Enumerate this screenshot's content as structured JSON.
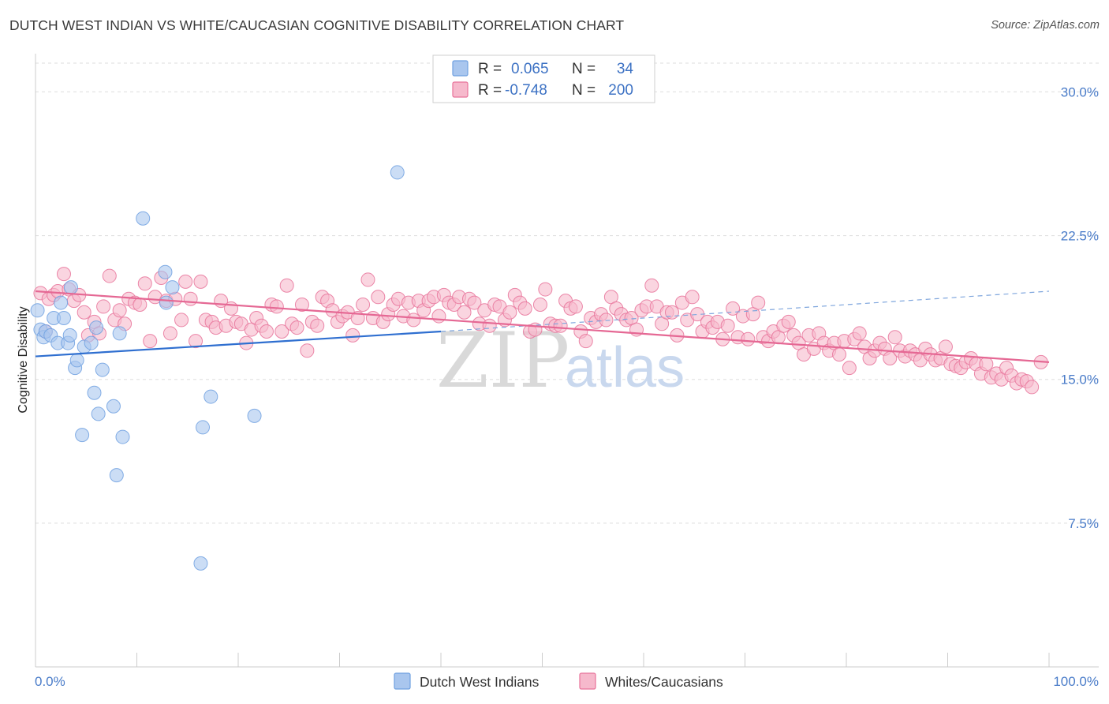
{
  "title": "DUTCH WEST INDIAN VS WHITE/CAUCASIAN COGNITIVE DISABILITY CORRELATION CHART",
  "source": "Source: ZipAtlas.com",
  "watermark": {
    "zip": "ZIP",
    "atlas": "atlas"
  },
  "legend": {
    "rows": [
      {
        "r_label": "R =",
        "r_value": "0.065",
        "n_label": "N =",
        "n_value": "34",
        "color": "#a9c6ee"
      },
      {
        "r_label": "R =",
        "r_value": "-0.748",
        "n_label": "N =",
        "n_value": "200",
        "color": "#f6b9cc"
      }
    ]
  },
  "bottom_legend": [
    {
      "label": "Dutch West Indians",
      "color": "#a9c6ee"
    },
    {
      "label": "Whites/Caucasians",
      "color": "#f6b9cc"
    }
  ],
  "chart_data": {
    "type": "scatter",
    "title": "DUTCH WEST INDIAN VS WHITE/CAUCASIAN COGNITIVE DISABILITY CORRELATION CHART",
    "xlabel": "",
    "ylabel": "Cognitive Disability",
    "xlim": [
      0,
      100
    ],
    "ylim": [
      0,
      31.5
    ],
    "x_tick_labels": [
      "0.0%",
      "100.0%"
    ],
    "y_ticks": [
      7.5,
      15.0,
      22.5,
      30.0
    ],
    "y_tick_labels": [
      "7.5%",
      "15.0%",
      "22.5%",
      "30.0%"
    ],
    "grid": "horizontal dashed",
    "legend_position": "top-center",
    "series": [
      {
        "name": "Dutch West Indians",
        "color": "#6fa0e0",
        "fill": "#a9c6ee",
        "trend": {
          "x": [
            0,
            40,
            100
          ],
          "y": [
            16.2,
            17.5,
            19.6
          ],
          "solid_until": 40
        },
        "points": [
          [
            0.2,
            18.6
          ],
          [
            0.5,
            17.6
          ],
          [
            0.8,
            17.2
          ],
          [
            1.0,
            17.5
          ],
          [
            1.5,
            17.3
          ],
          [
            1.8,
            18.2
          ],
          [
            2.2,
            16.9
          ],
          [
            2.5,
            19.0
          ],
          [
            2.8,
            18.2
          ],
          [
            3.2,
            16.9
          ],
          [
            3.4,
            17.3
          ],
          [
            3.5,
            19.8
          ],
          [
            3.9,
            15.6
          ],
          [
            4.1,
            16.0
          ],
          [
            4.6,
            12.1
          ],
          [
            4.8,
            16.7
          ],
          [
            5.5,
            16.9
          ],
          [
            5.8,
            14.3
          ],
          [
            6.0,
            17.7
          ],
          [
            6.2,
            13.2
          ],
          [
            6.6,
            15.5
          ],
          [
            7.7,
            13.6
          ],
          [
            8.0,
            10.0
          ],
          [
            8.3,
            17.4
          ],
          [
            8.6,
            12.0
          ],
          [
            10.6,
            23.4
          ],
          [
            12.8,
            20.6
          ],
          [
            12.9,
            19.0
          ],
          [
            13.5,
            19.8
          ],
          [
            16.3,
            5.4
          ],
          [
            16.5,
            12.5
          ],
          [
            17.3,
            14.1
          ],
          [
            21.6,
            13.1
          ],
          [
            35.7,
            25.8
          ]
        ]
      },
      {
        "name": "Whites/Caucasians",
        "color": "#e8739a",
        "fill": "#f6b9cc",
        "trend": {
          "x": [
            0,
            100
          ],
          "y": [
            19.6,
            15.9
          ]
        },
        "points": [
          [
            0.5,
            19.5
          ],
          [
            1.0,
            17.5
          ],
          [
            1.3,
            19.2
          ],
          [
            1.8,
            19.4
          ],
          [
            2.2,
            19.6
          ],
          [
            2.8,
            20.5
          ],
          [
            3.3,
            19.7
          ],
          [
            3.8,
            19.1
          ],
          [
            4.3,
            19.4
          ],
          [
            4.8,
            18.5
          ],
          [
            5.2,
            17.3
          ],
          [
            5.8,
            18.0
          ],
          [
            6.3,
            17.4
          ],
          [
            6.7,
            18.8
          ],
          [
            7.3,
            20.4
          ],
          [
            7.8,
            18.1
          ],
          [
            8.3,
            18.6
          ],
          [
            8.8,
            17.9
          ],
          [
            9.2,
            19.2
          ],
          [
            9.8,
            19.0
          ],
          [
            10.3,
            18.9
          ],
          [
            10.8,
            20.0
          ],
          [
            11.3,
            17.0
          ],
          [
            11.8,
            19.3
          ],
          [
            12.4,
            20.3
          ],
          [
            12.9,
            19.1
          ],
          [
            13.3,
            17.4
          ],
          [
            13.8,
            19.2
          ],
          [
            14.4,
            18.1
          ],
          [
            14.8,
            20.1
          ],
          [
            15.3,
            19.2
          ],
          [
            15.8,
            17.0
          ],
          [
            16.3,
            20.1
          ],
          [
            16.8,
            18.1
          ],
          [
            17.4,
            18.0
          ],
          [
            17.8,
            17.7
          ],
          [
            18.3,
            19.1
          ],
          [
            18.8,
            17.8
          ],
          [
            19.3,
            18.7
          ],
          [
            19.8,
            18.0
          ],
          [
            20.3,
            17.9
          ],
          [
            20.8,
            16.9
          ],
          [
            21.3,
            17.6
          ],
          [
            21.8,
            18.2
          ],
          [
            22.3,
            17.8
          ],
          [
            22.8,
            17.5
          ],
          [
            23.3,
            18.9
          ],
          [
            23.8,
            18.8
          ],
          [
            24.3,
            17.5
          ],
          [
            24.8,
            19.9
          ],
          [
            25.3,
            17.9
          ],
          [
            25.8,
            17.7
          ],
          [
            26.3,
            18.9
          ],
          [
            26.8,
            16.5
          ],
          [
            27.3,
            18.0
          ],
          [
            27.8,
            17.8
          ],
          [
            28.3,
            19.3
          ],
          [
            28.8,
            19.1
          ],
          [
            29.3,
            18.6
          ],
          [
            29.8,
            18.0
          ],
          [
            30.3,
            18.3
          ],
          [
            30.8,
            18.5
          ],
          [
            31.3,
            17.3
          ],
          [
            31.8,
            18.2
          ],
          [
            32.3,
            18.9
          ],
          [
            32.8,
            20.2
          ],
          [
            33.3,
            18.2
          ],
          [
            33.8,
            19.3
          ],
          [
            34.3,
            18.0
          ],
          [
            34.8,
            18.4
          ],
          [
            35.3,
            18.9
          ],
          [
            35.8,
            19.2
          ],
          [
            36.3,
            18.3
          ],
          [
            36.8,
            19.0
          ],
          [
            37.3,
            18.1
          ],
          [
            37.8,
            19.1
          ],
          [
            38.3,
            18.6
          ],
          [
            38.8,
            19.1
          ],
          [
            39.3,
            19.3
          ],
          [
            39.8,
            18.3
          ],
          [
            40.3,
            19.4
          ],
          [
            40.8,
            19.0
          ],
          [
            41.3,
            18.9
          ],
          [
            41.8,
            19.3
          ],
          [
            42.3,
            18.5
          ],
          [
            42.8,
            19.2
          ],
          [
            43.3,
            19.0
          ],
          [
            43.8,
            17.9
          ],
          [
            44.3,
            18.6
          ],
          [
            44.8,
            17.8
          ],
          [
            45.3,
            18.9
          ],
          [
            45.8,
            18.8
          ],
          [
            46.3,
            18.1
          ],
          [
            46.8,
            18.5
          ],
          [
            47.3,
            19.4
          ],
          [
            47.8,
            19.0
          ],
          [
            48.3,
            18.7
          ],
          [
            48.8,
            17.5
          ],
          [
            49.3,
            17.6
          ],
          [
            49.8,
            18.9
          ],
          [
            50.3,
            19.7
          ],
          [
            50.8,
            17.9
          ],
          [
            51.3,
            17.8
          ],
          [
            51.8,
            17.8
          ],
          [
            52.3,
            19.1
          ],
          [
            52.8,
            18.7
          ],
          [
            53.3,
            18.8
          ],
          [
            53.8,
            17.5
          ],
          [
            54.3,
            17.0
          ],
          [
            54.8,
            18.2
          ],
          [
            55.3,
            18.0
          ],
          [
            55.8,
            18.4
          ],
          [
            56.3,
            18.1
          ],
          [
            56.8,
            19.3
          ],
          [
            57.3,
            18.7
          ],
          [
            57.8,
            18.4
          ],
          [
            58.3,
            18.1
          ],
          [
            58.8,
            18.2
          ],
          [
            59.3,
            17.6
          ],
          [
            59.8,
            18.6
          ],
          [
            60.3,
            18.8
          ],
          [
            60.8,
            19.9
          ],
          [
            61.3,
            18.8
          ],
          [
            61.8,
            17.9
          ],
          [
            62.3,
            18.5
          ],
          [
            62.8,
            18.5
          ],
          [
            63.3,
            17.3
          ],
          [
            63.8,
            19.0
          ],
          [
            64.3,
            18.1
          ],
          [
            64.8,
            19.3
          ],
          [
            65.3,
            18.4
          ],
          [
            65.8,
            17.5
          ],
          [
            66.3,
            18.0
          ],
          [
            66.8,
            17.7
          ],
          [
            67.3,
            18.0
          ],
          [
            67.8,
            17.1
          ],
          [
            68.3,
            17.8
          ],
          [
            68.8,
            18.7
          ],
          [
            69.3,
            17.2
          ],
          [
            69.8,
            18.3
          ],
          [
            70.3,
            17.1
          ],
          [
            70.8,
            18.4
          ],
          [
            71.3,
            19.0
          ],
          [
            71.8,
            17.2
          ],
          [
            72.3,
            17.0
          ],
          [
            72.8,
            17.5
          ],
          [
            73.3,
            17.2
          ],
          [
            73.8,
            17.8
          ],
          [
            74.3,
            18.0
          ],
          [
            74.8,
            17.3
          ],
          [
            75.3,
            16.9
          ],
          [
            75.8,
            16.3
          ],
          [
            76.3,
            17.3
          ],
          [
            76.8,
            16.6
          ],
          [
            77.3,
            17.4
          ],
          [
            77.8,
            16.9
          ],
          [
            78.3,
            16.5
          ],
          [
            78.8,
            16.9
          ],
          [
            79.3,
            16.3
          ],
          [
            79.8,
            17.0
          ],
          [
            80.3,
            15.6
          ],
          [
            80.8,
            17.1
          ],
          [
            81.3,
            17.4
          ],
          [
            81.8,
            16.7
          ],
          [
            82.3,
            16.1
          ],
          [
            82.8,
            16.5
          ],
          [
            83.3,
            16.9
          ],
          [
            83.8,
            16.6
          ],
          [
            84.3,
            16.1
          ],
          [
            84.8,
            17.2
          ],
          [
            85.3,
            16.5
          ],
          [
            85.8,
            16.2
          ],
          [
            86.3,
            16.5
          ],
          [
            86.8,
            16.3
          ],
          [
            87.3,
            16.0
          ],
          [
            87.8,
            16.6
          ],
          [
            88.3,
            16.3
          ],
          [
            88.8,
            16.0
          ],
          [
            89.3,
            16.1
          ],
          [
            89.8,
            16.7
          ],
          [
            90.3,
            15.8
          ],
          [
            90.8,
            15.7
          ],
          [
            91.3,
            15.6
          ],
          [
            91.8,
            15.9
          ],
          [
            92.3,
            16.1
          ],
          [
            92.8,
            15.8
          ],
          [
            93.3,
            15.3
          ],
          [
            93.8,
            15.8
          ],
          [
            94.3,
            15.1
          ],
          [
            94.8,
            15.3
          ],
          [
            95.3,
            15.0
          ],
          [
            95.8,
            15.6
          ],
          [
            96.3,
            15.2
          ],
          [
            96.8,
            14.8
          ],
          [
            97.3,
            15.0
          ],
          [
            97.8,
            14.9
          ],
          [
            98.3,
            14.6
          ],
          [
            99.2,
            15.9
          ]
        ]
      }
    ]
  }
}
